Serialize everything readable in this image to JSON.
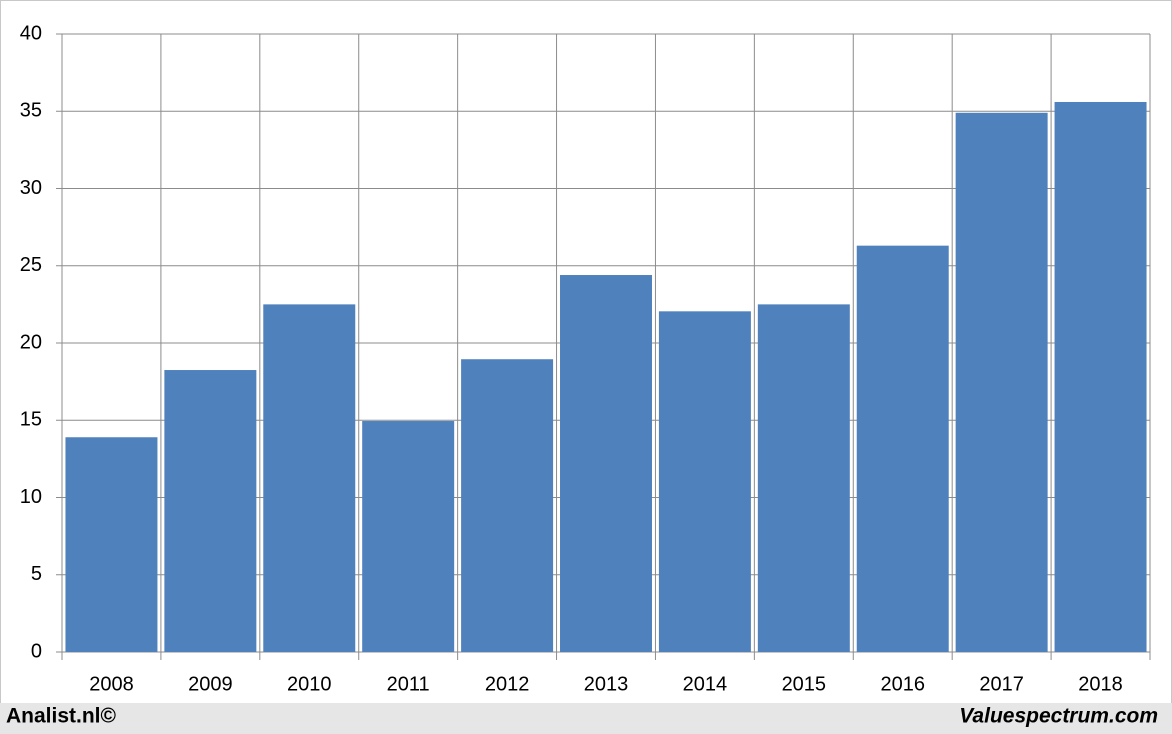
{
  "chart_data": {
    "type": "bar",
    "categories": [
      "2008",
      "2009",
      "2010",
      "2011",
      "2012",
      "2013",
      "2014",
      "2015",
      "2016",
      "2017",
      "2018"
    ],
    "values": [
      13.9,
      18.25,
      22.5,
      14.95,
      18.95,
      24.4,
      22.05,
      22.5,
      26.3,
      34.9,
      35.6
    ],
    "color": "#4f81bd",
    "ylim": [
      0,
      40
    ],
    "yticks": [
      0,
      5,
      10,
      15,
      20,
      25,
      30,
      35,
      40
    ],
    "grid": true,
    "source_left": "Analist.nl©",
    "source_right": "Valuespectrum.com"
  }
}
